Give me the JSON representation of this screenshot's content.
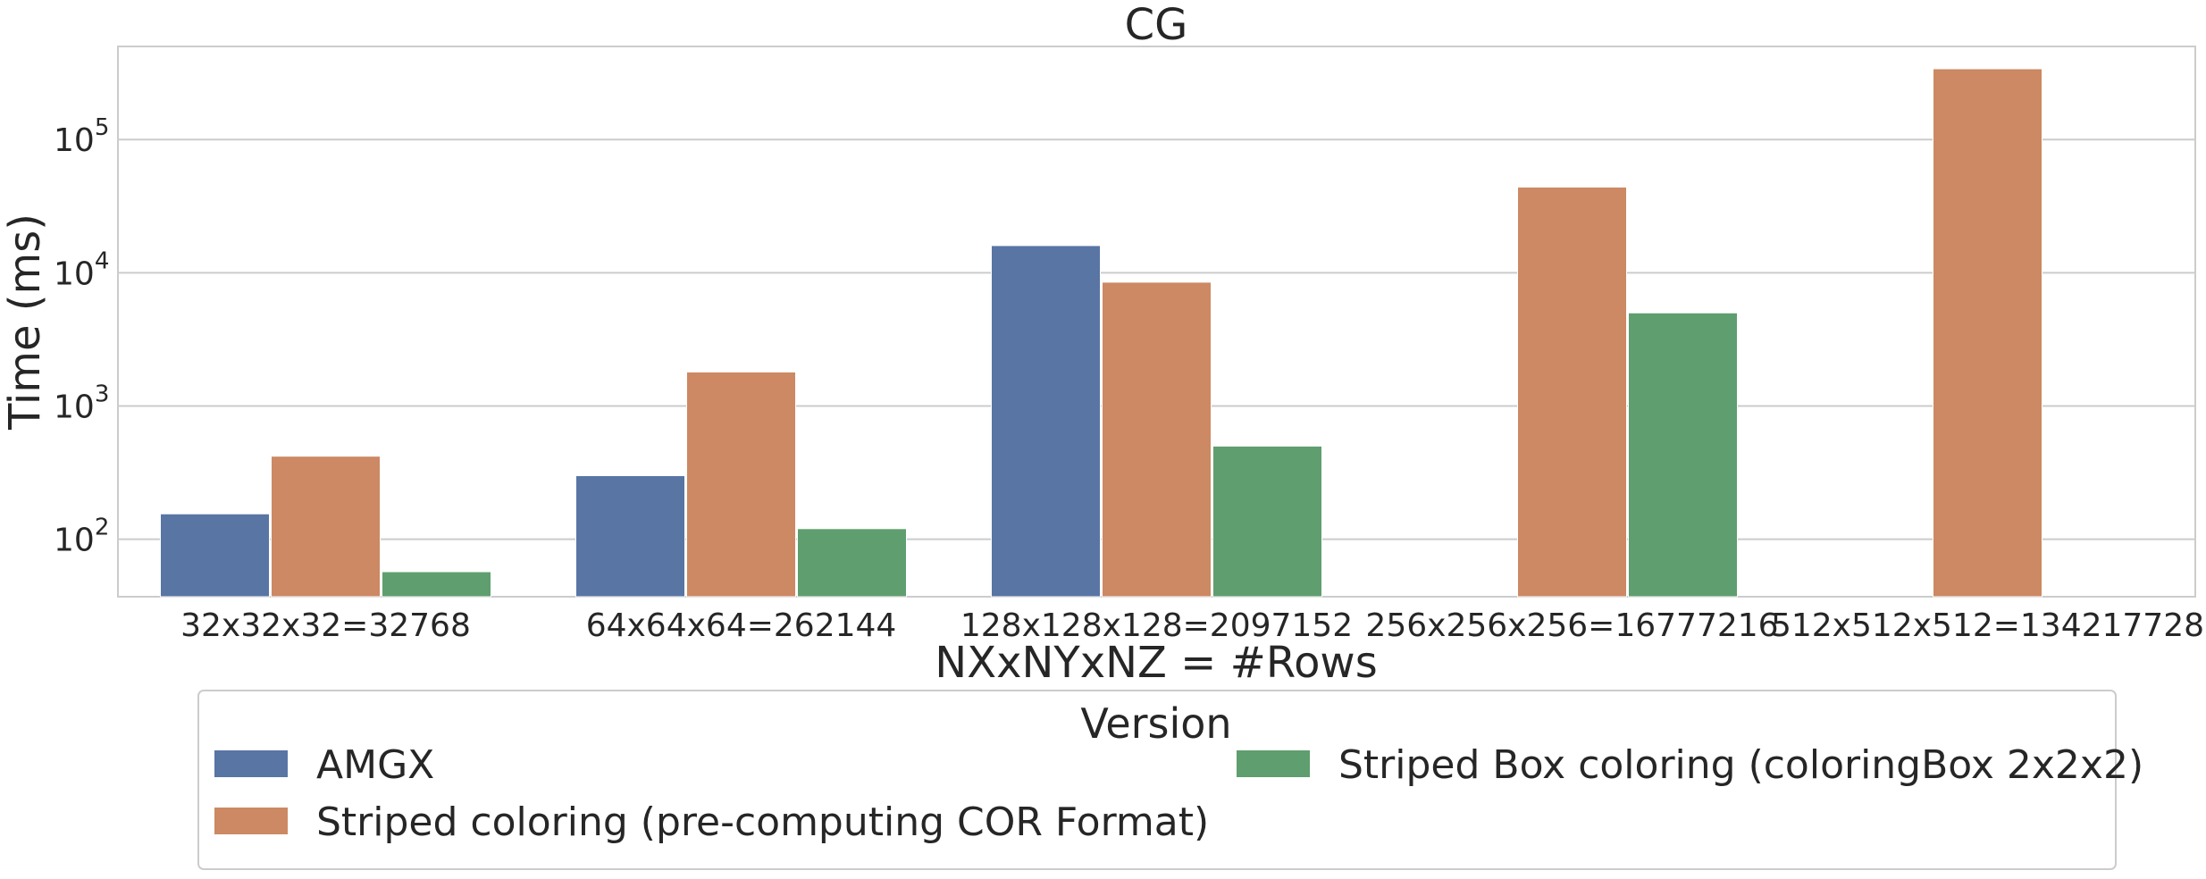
{
  "chart_data": {
    "type": "bar",
    "title": "CG",
    "xlabel": "NXxNYxNZ = #Rows",
    "ylabel": "Time (ms)",
    "yscale": "log",
    "ylim": [
      37,
      500000
    ],
    "yticks": [
      {
        "value": 100,
        "base": "10",
        "exp": "2"
      },
      {
        "value": 1000,
        "base": "10",
        "exp": "3"
      },
      {
        "value": 10000,
        "base": "10",
        "exp": "4"
      },
      {
        "value": 100000,
        "base": "10",
        "exp": "5"
      }
    ],
    "grid": true,
    "categories": [
      "32x32x32=32768",
      "64x64x64=262144",
      "128x128x128=2097152",
      "256x256x256=16777216",
      "512x512x512=134217728"
    ],
    "series": [
      {
        "name": "AMGX",
        "color": "#5875a4",
        "values": [
          155,
          300,
          16000,
          null,
          null
        ]
      },
      {
        "name": "Striped coloring (pre-computing COR Format)",
        "color": "#cc8963",
        "values": [
          420,
          1800,
          8500,
          44000,
          340000
        ]
      },
      {
        "name": "Striped Box coloring (coloringBox 2x2x2)",
        "color": "#5f9e6e",
        "values": [
          57,
          120,
          500,
          5000,
          null
        ]
      }
    ],
    "legend": {
      "title": "Version",
      "placement": "bottom"
    }
  }
}
